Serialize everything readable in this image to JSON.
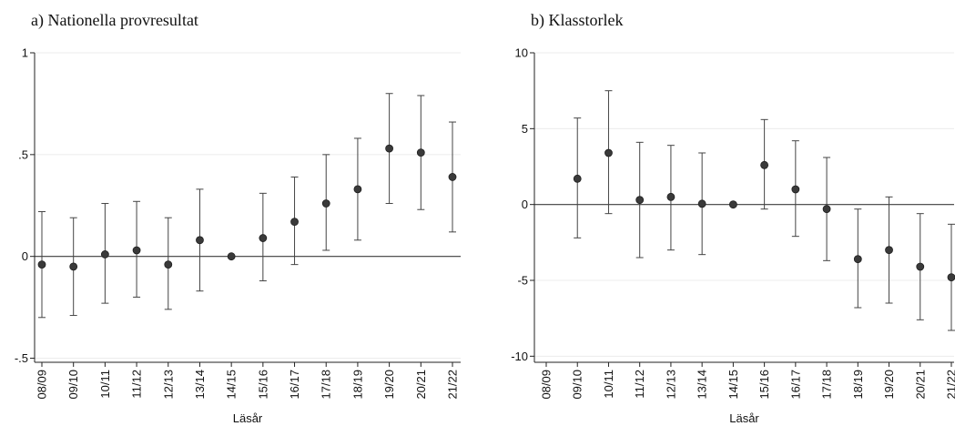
{
  "chart_data": [
    {
      "type": "scatter",
      "title": "a) Nationella provresultat",
      "xlabel": "Läsår",
      "ylabel": "",
      "categories": [
        "08/09",
        "09/10",
        "10/11",
        "11/12",
        "12/13",
        "13/14",
        "14/15",
        "15/16",
        "16/17",
        "17/18",
        "18/19",
        "19/20",
        "20/21",
        "21/22"
      ],
      "series": [
        {
          "values": [
            -0.04,
            -0.05,
            0.01,
            0.03,
            -0.04,
            0.08,
            0.0,
            0.09,
            0.17,
            0.26,
            0.33,
            0.53,
            0.51,
            0.39
          ],
          "ci_low": [
            -0.3,
            -0.29,
            -0.23,
            -0.2,
            -0.26,
            -0.17,
            0.0,
            -0.12,
            -0.04,
            0.03,
            0.08,
            0.26,
            0.23,
            0.12
          ],
          "ci_high": [
            0.22,
            0.19,
            0.26,
            0.27,
            0.19,
            0.33,
            0.0,
            0.31,
            0.39,
            0.5,
            0.58,
            0.8,
            0.79,
            0.66
          ]
        }
      ],
      "ylim": [
        -0.52,
        1.0
      ],
      "yticks": [
        -0.5,
        0,
        0.5,
        1
      ],
      "ytick_labels": [
        "-.5",
        "0",
        ".5",
        "1"
      ],
      "reference_line": 0,
      "grid": true,
      "marker_color": "#3a3a3a"
    },
    {
      "type": "scatter",
      "title": "b) Klasstorlek",
      "xlabel": "Läsår",
      "ylabel": "",
      "categories": [
        "08/09",
        "09/10",
        "10/11",
        "11/12",
        "12/13",
        "13/14",
        "14/15",
        "15/16",
        "16/17",
        "17/18",
        "18/19",
        "19/20",
        "20/21",
        "21/22"
      ],
      "series": [
        {
          "values": [
            null,
            1.7,
            3.4,
            0.3,
            0.5,
            0.05,
            0.0,
            2.6,
            1.0,
            -0.3,
            -3.6,
            -3.0,
            -4.1,
            -4.8
          ],
          "ci_low": [
            null,
            -2.2,
            -0.6,
            -3.5,
            -3.0,
            -3.3,
            0.0,
            -0.3,
            -2.1,
            -3.7,
            -6.8,
            -6.5,
            -7.6,
            -8.3
          ],
          "ci_high": [
            null,
            5.7,
            7.5,
            4.1,
            3.9,
            3.4,
            0.0,
            5.6,
            4.2,
            3.1,
            -0.3,
            0.5,
            -0.6,
            -1.3
          ]
        }
      ],
      "ylim": [
        -10.4,
        10.0
      ],
      "yticks": [
        -10,
        -5,
        0,
        5,
        10
      ],
      "ytick_labels": [
        "-10",
        "-5",
        "0",
        "5",
        "10"
      ],
      "reference_line": 0,
      "grid": true,
      "marker_color": "#3a3a3a"
    }
  ]
}
